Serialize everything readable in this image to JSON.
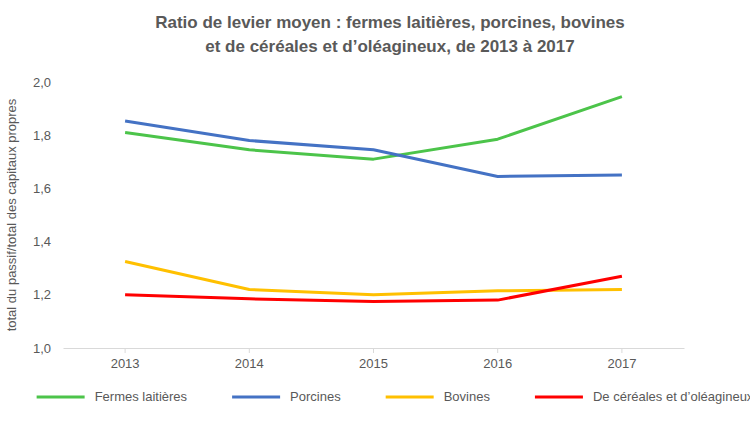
{
  "chart_data": {
    "type": "line",
    "title": "Ratio de levier moyen : fermes laitières, porcines, bovines et de céréales et d’oléagineux, de 2013 à 2017",
    "y_label": "total du passif/total des capitaux propres",
    "categories": [
      "2013",
      "2014",
      "2015",
      "2016",
      "2017"
    ],
    "series": [
      {
        "name": "Fermes laitières",
        "color": "#4cc44a",
        "values": [
          1.81,
          1.745,
          1.71,
          1.785,
          1.945
        ]
      },
      {
        "name": "Porcines",
        "color": "#4472c4",
        "values": [
          1.853,
          1.78,
          1.745,
          1.645,
          1.65
        ]
      },
      {
        "name": "Bovines",
        "color": "#ffc000",
        "values": [
          1.325,
          1.22,
          1.2,
          1.215,
          1.22
        ]
      },
      {
        "name": "De céréales et d’oléagineux",
        "color": "#ff0000",
        "values": [
          1.2,
          1.185,
          1.175,
          1.18,
          1.27
        ]
      }
    ],
    "ylim": [
      1.0,
      2.0
    ],
    "yticks": [
      {
        "value": 1.0,
        "label": "1,0"
      },
      {
        "value": 1.2,
        "label": "1,2"
      },
      {
        "value": 1.4,
        "label": "1,4"
      },
      {
        "value": 1.6,
        "label": "1,6"
      },
      {
        "value": 1.8,
        "label": "1,8"
      },
      {
        "value": 2.0,
        "label": "2,0"
      }
    ],
    "grid": false,
    "legend": "bottom"
  }
}
